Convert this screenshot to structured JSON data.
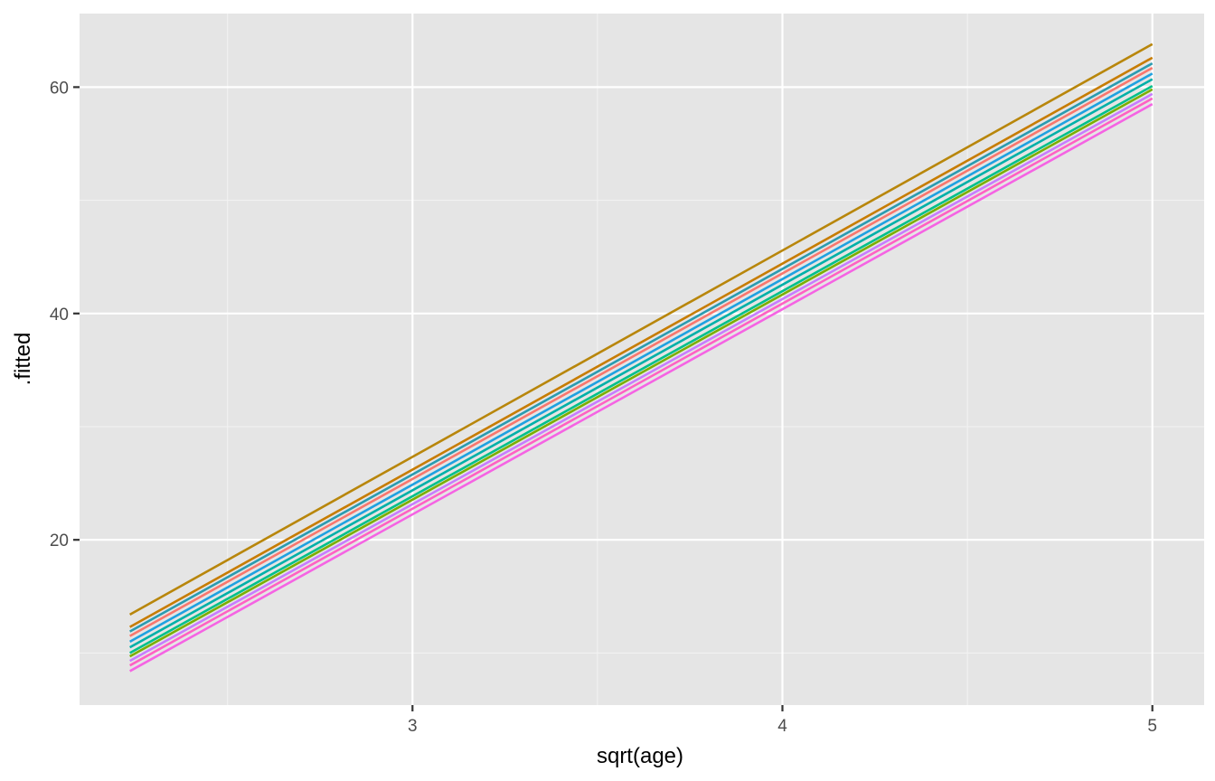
{
  "chart_data": {
    "type": "line",
    "title": "",
    "xlabel": "sqrt(age)",
    "ylabel": ".fitted",
    "xlim": [
      2.1,
      5.14
    ],
    "ylim": [
      5.4,
      66.5
    ],
    "x_major_ticks": [
      3,
      4,
      5
    ],
    "x_tick_labels": [
      "3",
      "4",
      "5"
    ],
    "x_minor_ticks": [
      2.5,
      3.5,
      4.5
    ],
    "y_major_ticks": [
      20,
      40,
      60
    ],
    "y_tick_labels": [
      "20",
      "40",
      "60"
    ],
    "y_minor_ticks": [
      10,
      30,
      50
    ],
    "grid": true,
    "background": "#e5e5e5",
    "x": [
      2.236,
      5.0
    ],
    "series": [
      {
        "color": "#B8860B",
        "values": [
          13.4,
          63.8
        ]
      },
      {
        "color": "#C77C00",
        "values": [
          12.3,
          62.6
        ]
      },
      {
        "color": "#2A9BB0",
        "values": [
          11.9,
          62.1
        ]
      },
      {
        "color": "#F8766D",
        "values": [
          11.5,
          61.7
        ]
      },
      {
        "color": "#1FA1E0",
        "values": [
          11.0,
          61.2
        ]
      },
      {
        "color": "#00B0A8",
        "values": [
          10.5,
          60.7
        ]
      },
      {
        "color": "#00C08B",
        "values": [
          10.0,
          60.1
        ]
      },
      {
        "color": "#7CAE00",
        "values": [
          9.7,
          59.8
        ]
      },
      {
        "color": "#C77CFF",
        "values": [
          9.3,
          59.4
        ]
      },
      {
        "color": "#FF61C3",
        "values": [
          8.9,
          59.0
        ]
      },
      {
        "color": "#F564E3",
        "values": [
          8.4,
          58.5
        ]
      }
    ]
  }
}
